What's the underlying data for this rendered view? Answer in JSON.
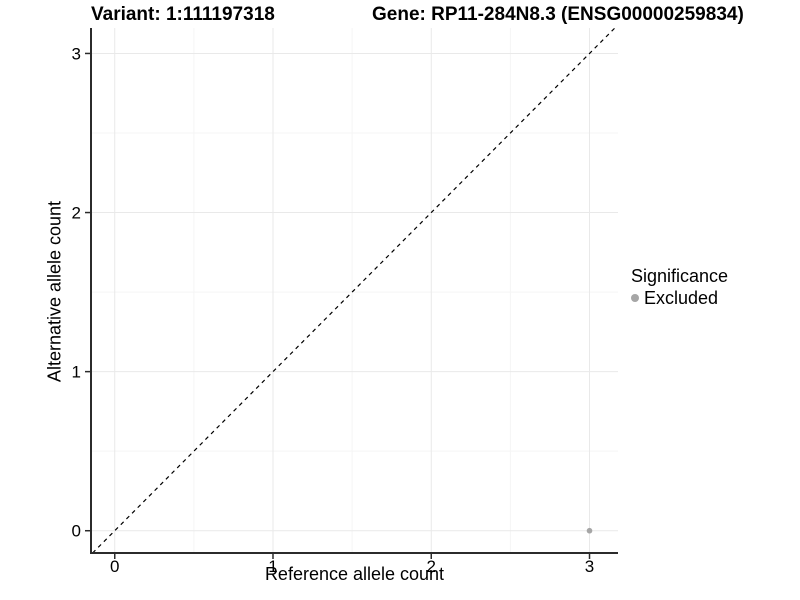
{
  "chart_data": {
    "type": "scatter",
    "title_left": "Variant: 1:111197318",
    "title_right": "Gene: RP11-284N8.3 (ENSG00000259834)",
    "xlabel": "Reference allele count",
    "ylabel": "Alternative allele count",
    "xlim": [
      -0.15,
      3.18
    ],
    "ylim": [
      -0.14,
      3.16
    ],
    "x_ticks": [
      0,
      1,
      2,
      3
    ],
    "y_ticks": [
      0,
      1,
      2,
      3
    ],
    "x_minor_ticks": [
      0.5,
      1.5,
      2.5
    ],
    "y_minor_ticks": [
      0.5,
      1.5,
      2.5
    ],
    "grid": "major+minor",
    "reference_line": {
      "type": "identity y=x",
      "style": "dashed",
      "color": "#000000"
    },
    "series": [
      {
        "name": "Excluded",
        "color": "#a6a6a6",
        "points": [
          {
            "x": 3,
            "y": 0
          }
        ]
      }
    ],
    "legend": {
      "title": "Significance",
      "position": "right",
      "entries": [
        {
          "label": "Excluded",
          "color": "#a6a6a6"
        }
      ]
    },
    "colors": {
      "background": "#ffffff",
      "grid_major": "#e9e9e9",
      "grid_minor": "#f5f5f5",
      "axis_line": "#2b2b2b",
      "tick_text": "#000000",
      "point": "#a6a6a6"
    }
  }
}
